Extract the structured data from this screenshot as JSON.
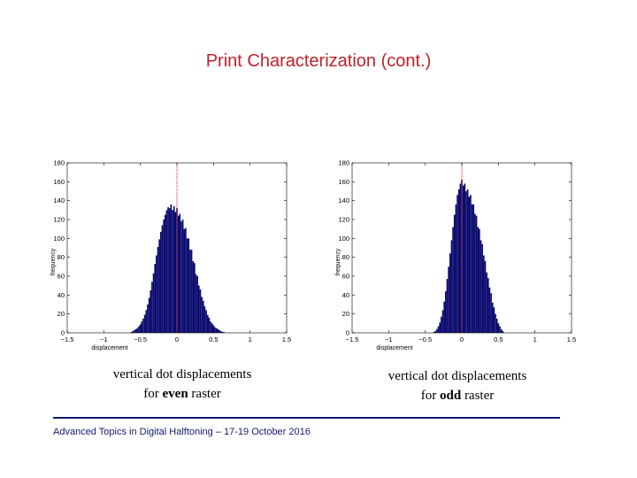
{
  "slide": {
    "title": "Print Characterization (cont.)",
    "footer": "Advanced Topics in Digital Halftoning – 17-19 October 2016"
  },
  "captions": [
    {
      "line1": "vertical dot displacements",
      "prefix": "for ",
      "emph": "even",
      "suffix": " raster"
    },
    {
      "line1": "vertical dot displacements",
      "prefix": "for ",
      "emph": "odd",
      "suffix": " raster"
    }
  ],
  "colors": {
    "title": "#c0202c",
    "bars": "#0a0a6e",
    "mean_line": "#d01010",
    "footer": "#141a6e"
  },
  "chart_data": [
    {
      "type": "bar",
      "xlabel": "displacement",
      "ylabel": "frequency",
      "xlim": [
        -1.5,
        1.5
      ],
      "ylim": [
        0,
        180
      ],
      "xticks": [
        -1.5,
        -1,
        -0.5,
        0,
        0.5,
        1,
        1.5
      ],
      "xtick_labels": [
        "−1.5",
        "−1",
        "−0.5",
        "0",
        "0.5",
        "1",
        "1.5"
      ],
      "yticks": [
        0,
        20,
        40,
        60,
        80,
        100,
        120,
        140,
        160,
        180
      ],
      "grid": false,
      "mean_line_x": 0,
      "bin_width": 0.02,
      "x": [
        -0.62,
        -0.6,
        -0.58,
        -0.56,
        -0.54,
        -0.52,
        -0.5,
        -0.48,
        -0.46,
        -0.44,
        -0.42,
        -0.4,
        -0.38,
        -0.36,
        -0.34,
        -0.32,
        -0.3,
        -0.28,
        -0.26,
        -0.24,
        -0.22,
        -0.2,
        -0.18,
        -0.16,
        -0.14,
        -0.12,
        -0.1,
        -0.08,
        -0.06,
        -0.04,
        -0.02,
        0,
        0.02,
        0.04,
        0.06,
        0.08,
        0.1,
        0.12,
        0.14,
        0.16,
        0.18,
        0.2,
        0.22,
        0.24,
        0.26,
        0.28,
        0.3,
        0.32,
        0.34,
        0.36,
        0.38,
        0.4,
        0.42,
        0.44,
        0.46,
        0.48,
        0.5,
        0.52,
        0.54,
        0.56,
        0.58,
        0.6,
        0.62,
        0.64
      ],
      "values": [
        1,
        2,
        3,
        4,
        5,
        7,
        9,
        12,
        15,
        19,
        24,
        30,
        37,
        45,
        54,
        63,
        73,
        82,
        91,
        99,
        107,
        114,
        120,
        125,
        130,
        133,
        132,
        136,
        130,
        134,
        128,
        132,
        124,
        126,
        118,
        120,
        110,
        111,
        100,
        100,
        88,
        88,
        76,
        74,
        62,
        60,
        50,
        46,
        38,
        34,
        28,
        24,
        19,
        16,
        12,
        10,
        8,
        6,
        5,
        4,
        3,
        2,
        1,
        1
      ]
    },
    {
      "type": "bar",
      "xlabel": "displacement",
      "ylabel": "frequency",
      "xlim": [
        -1.5,
        1.5
      ],
      "ylim": [
        0,
        180
      ],
      "xticks": [
        -1.5,
        -1,
        -0.5,
        0,
        0.5,
        1,
        1.5
      ],
      "xtick_labels": [
        "−1.5",
        "−1",
        "−0.5",
        "0",
        "0.5",
        "1",
        "1.5"
      ],
      "yticks": [
        0,
        20,
        40,
        60,
        80,
        100,
        120,
        140,
        160,
        180
      ],
      "grid": false,
      "mean_line_x": 0,
      "bin_width": 0.02,
      "x": [
        -0.38,
        -0.36,
        -0.34,
        -0.32,
        -0.3,
        -0.28,
        -0.26,
        -0.24,
        -0.22,
        -0.2,
        -0.18,
        -0.16,
        -0.14,
        -0.12,
        -0.1,
        -0.08,
        -0.06,
        -0.04,
        -0.02,
        0,
        0.02,
        0.04,
        0.06,
        0.08,
        0.1,
        0.12,
        0.14,
        0.16,
        0.18,
        0.2,
        0.22,
        0.24,
        0.26,
        0.28,
        0.3,
        0.32,
        0.34,
        0.36,
        0.38,
        0.4,
        0.42,
        0.44,
        0.46,
        0.48,
        0.5,
        0.52,
        0.54,
        0.56
      ],
      "values": [
        1,
        2,
        4,
        7,
        11,
        17,
        24,
        33,
        44,
        57,
        70,
        84,
        98,
        112,
        125,
        136,
        146,
        152,
        158,
        162,
        156,
        158,
        150,
        152,
        144,
        146,
        136,
        136,
        126,
        124,
        112,
        110,
        98,
        94,
        82,
        76,
        64,
        58,
        48,
        42,
        32,
        27,
        20,
        15,
        10,
        7,
        4,
        2
      ]
    }
  ]
}
